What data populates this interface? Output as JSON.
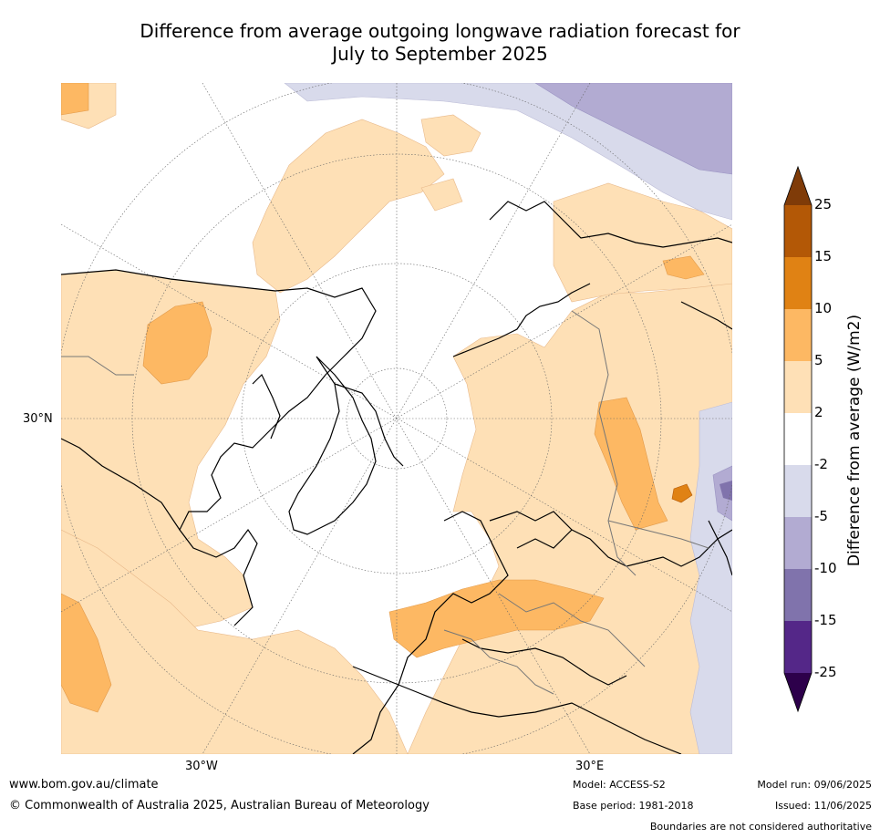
{
  "title": {
    "line1": "Difference from average outgoing longwave radiation forecast for",
    "line2": "July to September 2025"
  },
  "map": {
    "projection": "north polar stereographic",
    "axis_labels": {
      "lat": "30°N",
      "lon_left": "30°W",
      "lon_right": "30°E"
    }
  },
  "colorbar": {
    "title": "Difference from average (W/m2)",
    "ticks": [
      "25",
      "15",
      "10",
      "5",
      "2",
      "-2",
      "-5",
      "-10",
      "-15",
      "-25"
    ],
    "colors": {
      "over": "#7f3b08",
      "b15_25": "#b35806",
      "b10_15": "#e08214",
      "b5_10": "#fdb863",
      "b2_5": "#fee0b6",
      "neutral": "#ffffff",
      "m2_5": "#d8daeb",
      "m5_10": "#b2abd2",
      "m10_15": "#8073ac",
      "m15_25": "#542788",
      "under": "#2d004b"
    }
  },
  "footer": {
    "url": "www.bom.gov.au/climate",
    "copyright": "© Commonwealth of Australia 2025, Australian Bureau of Meteorology",
    "model": "Model: ACCESS-S2",
    "base_period": "Base period: 1981-2018",
    "model_run": "Model run: 09/06/2025",
    "issued": "Issued: 11/06/2025",
    "disclaimer": "Boundaries are not considered authoritative"
  }
}
